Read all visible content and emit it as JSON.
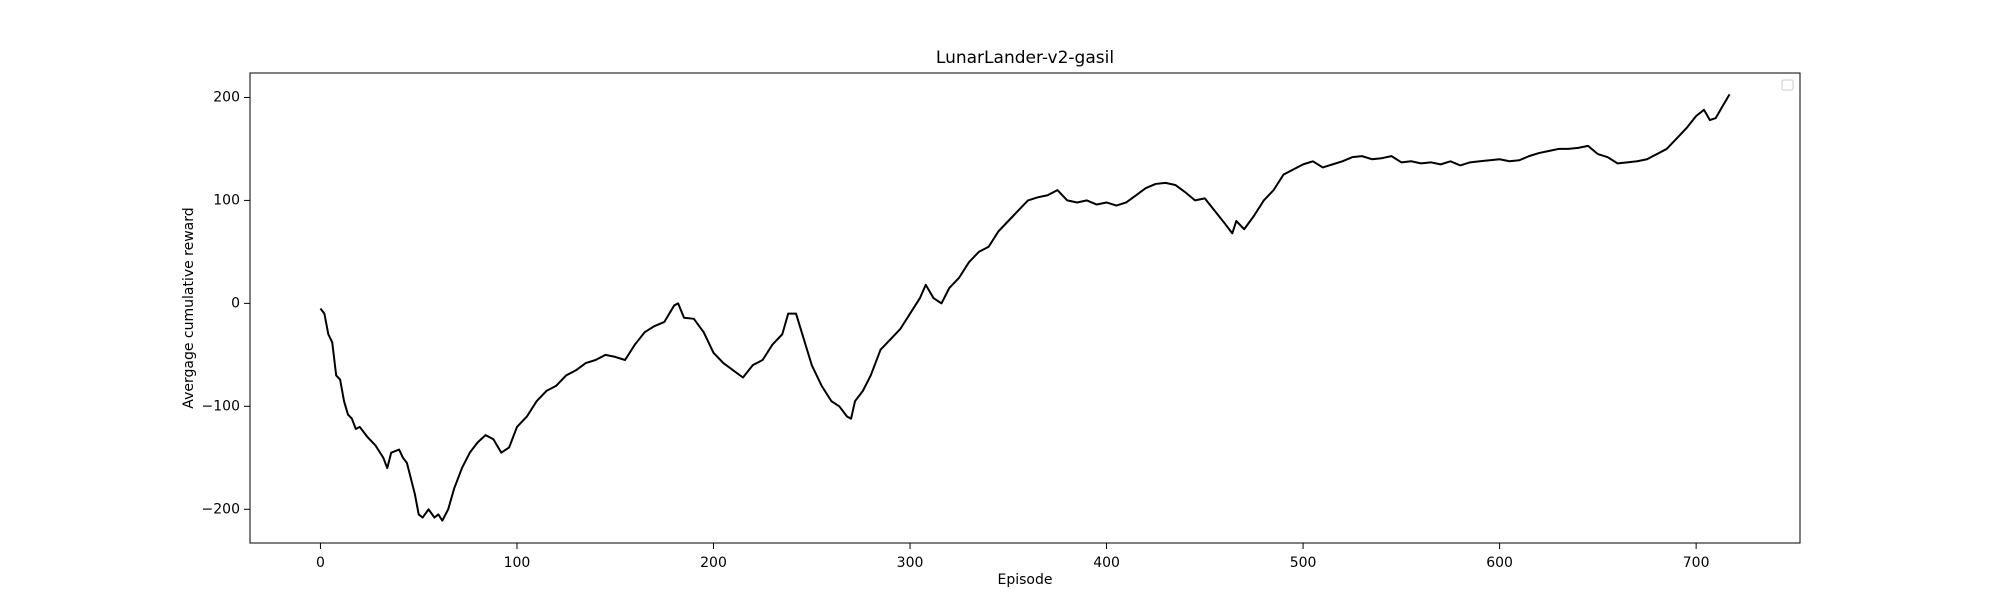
{
  "chart_data": {
    "type": "line",
    "title": "LunarLander-v2-gasil",
    "x_label": "Episode",
    "y_label": "Avergage cumulative reward",
    "x": [
      0,
      2,
      4,
      6,
      8,
      10,
      12,
      14,
      16,
      18,
      20,
      24,
      28,
      32,
      34,
      36,
      40,
      42,
      44,
      46,
      48,
      50,
      52,
      55,
      58,
      60,
      62,
      65,
      68,
      72,
      76,
      80,
      84,
      88,
      92,
      96,
      100,
      105,
      110,
      115,
      120,
      125,
      130,
      135,
      140,
      145,
      150,
      155,
      160,
      165,
      170,
      175,
      180,
      182,
      185,
      190,
      195,
      200,
      205,
      210,
      215,
      220,
      225,
      230,
      235,
      238,
      242,
      246,
      250,
      255,
      260,
      264,
      268,
      270,
      272,
      276,
      280,
      285,
      290,
      295,
      300,
      305,
      308,
      312,
      316,
      320,
      325,
      330,
      335,
      340,
      345,
      350,
      355,
      360,
      365,
      370,
      375,
      380,
      385,
      390,
      395,
      400,
      405,
      410,
      415,
      420,
      425,
      430,
      435,
      440,
      445,
      450,
      455,
      460,
      464,
      466,
      470,
      475,
      480,
      485,
      490,
      495,
      500,
      505,
      510,
      515,
      520,
      525,
      530,
      535,
      540,
      545,
      550,
      555,
      560,
      565,
      570,
      575,
      580,
      585,
      590,
      595,
      600,
      605,
      610,
      615,
      620,
      625,
      630,
      635,
      640,
      645,
      650,
      655,
      660,
      665,
      670,
      675,
      680,
      685,
      690,
      695,
      700,
      704,
      707,
      710,
      713,
      717
    ],
    "values": [
      -5,
      -10,
      -30,
      -38,
      -70,
      -74,
      -95,
      -108,
      -112,
      -122,
      -120,
      -130,
      -138,
      -150,
      -160,
      -145,
      -142,
      -150,
      -155,
      -170,
      -185,
      -205,
      -208,
      -200,
      -208,
      -205,
      -211,
      -200,
      -180,
      -160,
      -145,
      -135,
      -128,
      -132,
      -145,
      -140,
      -120,
      -110,
      -95,
      -85,
      -80,
      -70,
      -65,
      -58,
      -55,
      -50,
      -52,
      -55,
      -40,
      -28,
      -22,
      -18,
      -2,
      0,
      -14,
      -15,
      -28,
      -48,
      -58,
      -65,
      -72,
      -60,
      -55,
      -40,
      -30,
      -10,
      -10,
      -35,
      -60,
      -80,
      -95,
      -100,
      -110,
      -112,
      -95,
      -85,
      -70,
      -45,
      -35,
      -25,
      -10,
      5,
      18,
      5,
      0,
      15,
      25,
      40,
      50,
      55,
      70,
      80,
      90,
      100,
      103,
      105,
      110,
      100,
      98,
      100,
      96,
      98,
      95,
      98,
      105,
      112,
      116,
      117,
      115,
      108,
      100,
      102,
      90,
      78,
      68,
      80,
      72,
      85,
      100,
      110,
      125,
      130,
      135,
      138,
      132,
      135,
      138,
      142,
      143,
      140,
      141,
      143,
      137,
      138,
      136,
      137,
      135,
      138,
      134,
      137,
      138,
      139,
      140,
      138,
      139,
      143,
      146,
      148,
      150,
      150,
      151,
      153,
      145,
      142,
      136,
      137,
      138,
      140,
      145,
      150,
      160,
      170,
      182,
      188,
      178,
      180,
      190,
      203
    ],
    "color": "#000000",
    "xlim": [
      -35.85,
      752.85
    ],
    "ylim": [
      -232.75,
      223.75
    ],
    "xticks": [
      0,
      100,
      200,
      300,
      400,
      500,
      600,
      700
    ],
    "yticks": [
      {
        "value": -200,
        "label": "−200"
      },
      {
        "value": -100,
        "label": "−100"
      },
      0,
      100,
      200
    ],
    "grid": false
  }
}
